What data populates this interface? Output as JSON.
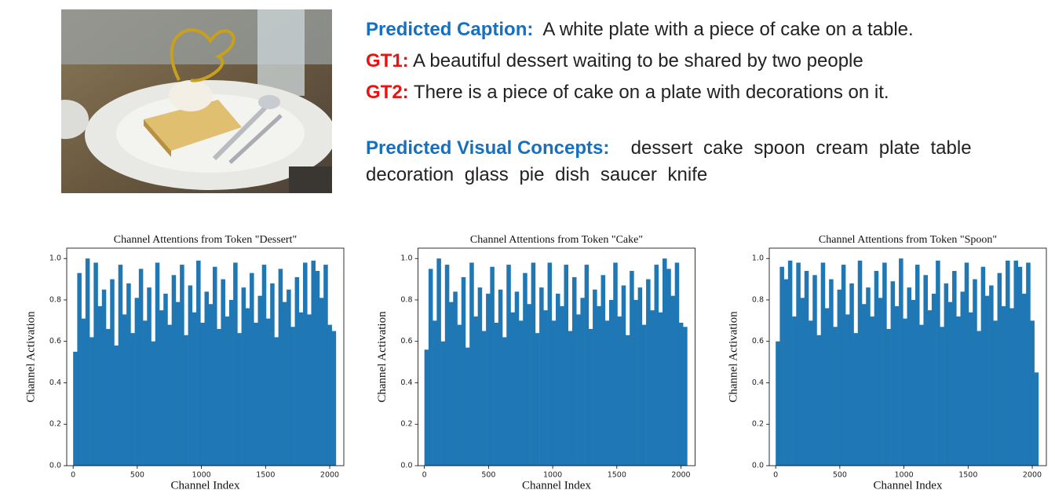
{
  "caption": {
    "label": "Predicted Caption:",
    "text": "A white plate with a piece of cake on a table."
  },
  "ground_truths": [
    {
      "label": "GT1:",
      "text": "A beautiful dessert waiting to be shared by two people"
    },
    {
      "label": "GT2:",
      "text": "There is a piece of cake on a plate with decorations on it."
    }
  ],
  "concepts": {
    "label": "Predicted Visual Concepts:",
    "text": "dessert cake spoon cream plate table decoration glass pie dish saucer knife"
  },
  "chart_data": [
    {
      "type": "bar",
      "title": "Channel Attentions from Token \"Dessert\"",
      "xlabel": "Channel Index",
      "ylabel": "Channel Activation",
      "color": "#1f77b4",
      "x": [
        0,
        32,
        64,
        96,
        128,
        160,
        192,
        224,
        256,
        288,
        320,
        352,
        384,
        416,
        448,
        480,
        512,
        544,
        576,
        608,
        640,
        672,
        704,
        736,
        768,
        800,
        832,
        864,
        896,
        928,
        960,
        992,
        1024,
        1056,
        1088,
        1120,
        1152,
        1184,
        1216,
        1248,
        1280,
        1312,
        1344,
        1376,
        1408,
        1440,
        1472,
        1504,
        1536,
        1568,
        1600,
        1632,
        1664,
        1696,
        1728,
        1760,
        1792,
        1824,
        1856,
        1888,
        1920,
        1952,
        1984,
        2016
      ],
      "values": [
        0.55,
        0.93,
        0.71,
        1.0,
        0.62,
        0.98,
        0.77,
        0.85,
        0.66,
        0.9,
        0.58,
        0.97,
        0.73,
        0.88,
        0.64,
        0.81,
        0.95,
        0.7,
        0.86,
        0.6,
        0.98,
        0.75,
        0.83,
        0.68,
        0.92,
        0.79,
        0.97,
        0.63,
        0.87,
        0.74,
        0.99,
        0.69,
        0.84,
        0.78,
        0.96,
        0.66,
        0.9,
        0.72,
        0.8,
        0.98,
        0.64,
        0.86,
        0.76,
        0.93,
        0.69,
        0.82,
        0.97,
        0.71,
        0.88,
        0.62,
        0.95,
        0.79,
        0.85,
        0.67,
        0.91,
        0.74,
        0.98,
        0.73,
        0.99,
        0.94,
        0.81,
        0.97,
        0.68,
        0.65
      ],
      "xlim": [
        -50,
        2110
      ],
      "ylim": [
        0,
        1.05
      ],
      "xticks": [
        0,
        500,
        1000,
        1500,
        2000
      ],
      "yticks": [
        {
          "value": 0,
          "label": "0.0"
        },
        {
          "value": 0.2,
          "label": "0.2"
        },
        {
          "value": 0.4,
          "label": "0.4"
        },
        {
          "value": 0.6,
          "label": "0.6"
        },
        {
          "value": 0.8,
          "label": "0.8"
        },
        {
          "value": 1,
          "label": "1.0"
        }
      ]
    },
    {
      "type": "bar",
      "title": "Channel Attentions from Token \"Cake\"",
      "xlabel": "Channel Index",
      "ylabel": "Channel Activation",
      "color": "#1f77b4",
      "x": [
        0,
        32,
        64,
        96,
        128,
        160,
        192,
        224,
        256,
        288,
        320,
        352,
        384,
        416,
        448,
        480,
        512,
        544,
        576,
        608,
        640,
        672,
        704,
        736,
        768,
        800,
        832,
        864,
        896,
        928,
        960,
        992,
        1024,
        1056,
        1088,
        1120,
        1152,
        1184,
        1216,
        1248,
        1280,
        1312,
        1344,
        1376,
        1408,
        1440,
        1472,
        1504,
        1536,
        1568,
        1600,
        1632,
        1664,
        1696,
        1728,
        1760,
        1792,
        1824,
        1856,
        1888,
        1920,
        1952,
        1984,
        2016
      ],
      "values": [
        0.56,
        0.95,
        0.7,
        1.0,
        0.6,
        0.97,
        0.79,
        0.84,
        0.68,
        0.91,
        0.57,
        0.98,
        0.72,
        0.86,
        0.65,
        0.83,
        0.96,
        0.69,
        0.85,
        0.62,
        0.97,
        0.74,
        0.84,
        0.7,
        0.93,
        0.78,
        0.98,
        0.64,
        0.86,
        0.75,
        0.98,
        0.7,
        0.83,
        0.77,
        0.97,
        0.65,
        0.91,
        0.73,
        0.81,
        0.97,
        0.66,
        0.85,
        0.77,
        0.92,
        0.7,
        0.8,
        0.98,
        0.72,
        0.87,
        0.63,
        0.94,
        0.8,
        0.86,
        0.68,
        0.9,
        0.75,
        0.97,
        0.74,
        1.0,
        0.95,
        0.82,
        0.98,
        0.69,
        0.67
      ],
      "xlim": [
        -50,
        2110
      ],
      "ylim": [
        0,
        1.05
      ],
      "xticks": [
        0,
        500,
        1000,
        1500,
        2000
      ],
      "yticks": [
        {
          "value": 0,
          "label": "0.0"
        },
        {
          "value": 0.2,
          "label": "0.2"
        },
        {
          "value": 0.4,
          "label": "0.4"
        },
        {
          "value": 0.6,
          "label": "0.6"
        },
        {
          "value": 0.8,
          "label": "0.8"
        },
        {
          "value": 1,
          "label": "1.0"
        }
      ]
    },
    {
      "type": "bar",
      "title": "Channel Attentions from Token \"Spoon\"",
      "xlabel": "Channel Index",
      "ylabel": "Channel Activation",
      "color": "#1f77b4",
      "x": [
        0,
        32,
        64,
        96,
        128,
        160,
        192,
        224,
        256,
        288,
        320,
        352,
        384,
        416,
        448,
        480,
        512,
        544,
        576,
        608,
        640,
        672,
        704,
        736,
        768,
        800,
        832,
        864,
        896,
        928,
        960,
        992,
        1024,
        1056,
        1088,
        1120,
        1152,
        1184,
        1216,
        1248,
        1280,
        1312,
        1344,
        1376,
        1408,
        1440,
        1472,
        1504,
        1536,
        1568,
        1600,
        1632,
        1664,
        1696,
        1728,
        1760,
        1792,
        1824,
        1856,
        1888,
        1920,
        1952,
        1984,
        2016
      ],
      "values": [
        0.6,
        0.96,
        0.9,
        0.99,
        0.72,
        0.98,
        0.81,
        0.94,
        0.7,
        0.92,
        0.63,
        0.98,
        0.76,
        0.9,
        0.67,
        0.85,
        0.97,
        0.73,
        0.88,
        0.64,
        0.99,
        0.78,
        0.86,
        0.72,
        0.94,
        0.81,
        0.98,
        0.66,
        0.89,
        0.77,
        1.0,
        0.71,
        0.86,
        0.8,
        0.97,
        0.68,
        0.92,
        0.75,
        0.83,
        0.99,
        0.67,
        0.88,
        0.79,
        0.94,
        0.72,
        0.84,
        0.98,
        0.74,
        0.9,
        0.65,
        0.96,
        0.82,
        0.87,
        0.7,
        0.93,
        0.77,
        0.99,
        0.76,
        0.99,
        0.96,
        0.83,
        0.98,
        0.7,
        0.45
      ],
      "xlim": [
        -50,
        2110
      ],
      "ylim": [
        0,
        1.05
      ],
      "xticks": [
        0,
        500,
        1000,
        1500,
        2000
      ],
      "yticks": [
        {
          "value": 0,
          "label": "0.0"
        },
        {
          "value": 0.2,
          "label": "0.2"
        },
        {
          "value": 0.4,
          "label": "0.4"
        },
        {
          "value": 0.6,
          "label": "0.6"
        },
        {
          "value": 0.8,
          "label": "0.8"
        },
        {
          "value": 1,
          "label": "1.0"
        }
      ]
    }
  ]
}
